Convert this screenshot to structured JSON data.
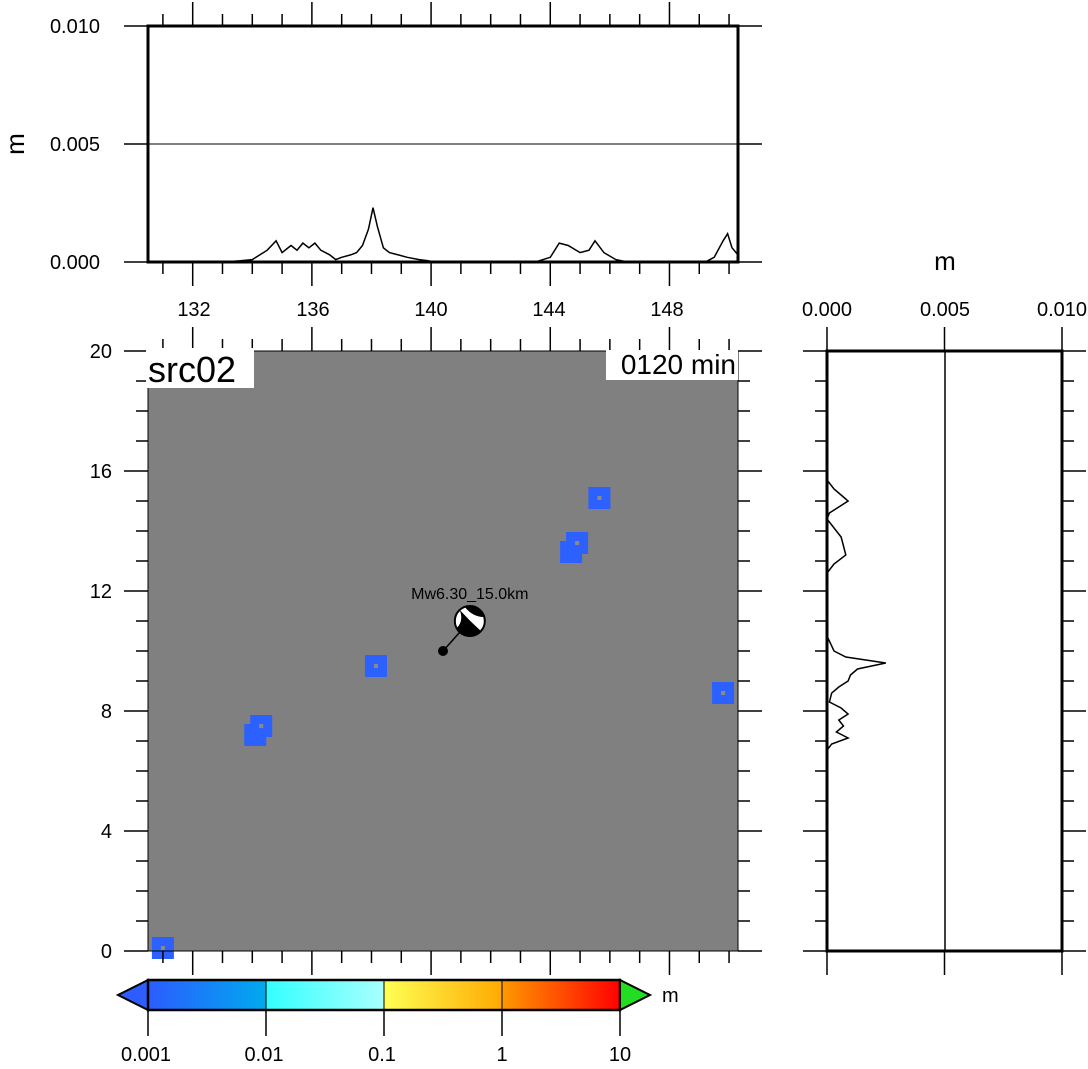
{
  "chart_data": [
    {
      "id": "top_profile",
      "type": "line",
      "xlabel": "",
      "ylabel": "m",
      "xlim": [
        130.5,
        150.3
      ],
      "ylim": [
        0,
        0.01
      ],
      "xticks": [
        "132",
        "136",
        "140",
        "144",
        "148"
      ],
      "yticks": [
        "0.000",
        "0.005",
        "0.010"
      ],
      "grid": "horizontal line at 0.005",
      "series": [
        {
          "x": [
            130.5,
            133.0,
            133.6,
            134.0,
            134.5,
            134.8,
            135.0,
            135.3,
            135.5,
            135.7,
            135.9,
            136.1,
            136.3,
            136.6,
            136.8,
            137.0,
            137.3,
            137.5,
            137.7,
            137.9,
            138.05,
            138.2,
            138.4,
            138.6,
            138.9,
            139.2,
            139.6,
            139.9,
            140.1,
            143.5,
            144.0,
            144.3,
            144.6,
            145.0,
            145.3,
            145.5,
            145.8,
            146.2,
            146.6,
            149.2,
            149.5,
            149.8,
            149.95,
            150.1,
            150.3
          ],
          "y": [
            0,
            0,
            5e-05,
            0.0001,
            0.0005,
            0.0009,
            0.0004,
            0.0007,
            0.0005,
            0.0008,
            0.0006,
            0.0008,
            0.0005,
            0.0003,
            0.0001,
            0.0002,
            0.0003,
            0.0004,
            0.0007,
            0.0014,
            0.0023,
            0.0015,
            0.0006,
            0.0004,
            0.0003,
            0.0002,
            0.0001,
            5e-05,
            0,
            0,
            0.0002,
            0.0008,
            0.0007,
            0.0004,
            0.0005,
            0.0009,
            0.0004,
            0.0001,
            0,
            0,
            0.0002,
            0.0009,
            0.0012,
            0.0006,
            0.0003
          ]
        }
      ]
    },
    {
      "id": "right_profile",
      "type": "line",
      "xlabel": "m",
      "ylabel": "",
      "xlim": [
        0,
        0.01
      ],
      "ylim": [
        0,
        20
      ],
      "xticks": [
        "0.000",
        "0.005",
        "0.010"
      ],
      "grid": "vertical line at 0.005",
      "series": [
        {
          "y": [
            20,
            15.7,
            15.4,
            15.2,
            15.0,
            14.8,
            14.6,
            14.4,
            14.2,
            14.0,
            13.8,
            13.5,
            13.2,
            12.9,
            12.6,
            10.5,
            10.0,
            9.8,
            9.6,
            9.4,
            9.2,
            9.0,
            8.8,
            8.6,
            8.3,
            8.1,
            7.9,
            7.7,
            7.5,
            7.3,
            7.1,
            6.9,
            6.7,
            0
          ],
          "x": [
            0,
            0,
            0.0003,
            0.0006,
            0.0009,
            0.0005,
            0.0001,
            0,
            0.0002,
            0.0004,
            0.0006,
            0.0007,
            0.0008,
            0.0003,
            0,
            0,
            0.0003,
            0.0008,
            0.0025,
            0.0013,
            0.001,
            0.0009,
            0.0005,
            0.0002,
            0.0001,
            0.0006,
            0.0009,
            0.0005,
            0.0007,
            0.0004,
            0.0009,
            0.0002,
            0,
            0
          ]
        }
      ]
    },
    {
      "id": "map",
      "type": "heatmap",
      "title": "src02",
      "time_label": "0120 min",
      "xlim": [
        130.5,
        150.3
      ],
      "ylim": [
        0,
        20
      ],
      "yticks": [
        "0",
        "4",
        "8",
        "12",
        "16",
        "20"
      ],
      "background_color": "#808080",
      "patches": [
        {
          "x": 134.1,
          "y": 7.2,
          "color": "#2c60ff"
        },
        {
          "x": 134.3,
          "y": 7.5,
          "color": "#2c60ff"
        },
        {
          "x": 138.15,
          "y": 9.5,
          "color": "#2c60ff"
        },
        {
          "x": 144.7,
          "y": 13.3,
          "color": "#2c60ff"
        },
        {
          "x": 144.9,
          "y": 13.6,
          "color": "#2c60ff"
        },
        {
          "x": 145.65,
          "y": 15.1,
          "color": "#2c60ff"
        },
        {
          "x": 149.8,
          "y": 8.6,
          "color": "#2c60ff"
        },
        {
          "x": 131.0,
          "y": 0.1,
          "color": "#2c60ff"
        }
      ],
      "source": {
        "label": "Mw6.30_15.0km",
        "epicenter": {
          "x": 140.4,
          "y": 10.0
        },
        "ball": {
          "x": 141.3,
          "y": 11.0
        }
      }
    },
    {
      "id": "colorbar",
      "type": "colorbar",
      "unit": "m",
      "ticks": [
        "0.001",
        "0.01",
        "0.1",
        "1",
        "10"
      ],
      "colors": {
        "under": "#2e5dff",
        "over": "#22dd22",
        "bins": [
          [
            "#2b5cff",
            "#00aaee"
          ],
          [
            "#33ffff",
            "#aaffff"
          ],
          [
            "#ffff55",
            "#ffaa00"
          ],
          [
            "#ff9900",
            "#ff0000"
          ]
        ]
      }
    }
  ]
}
